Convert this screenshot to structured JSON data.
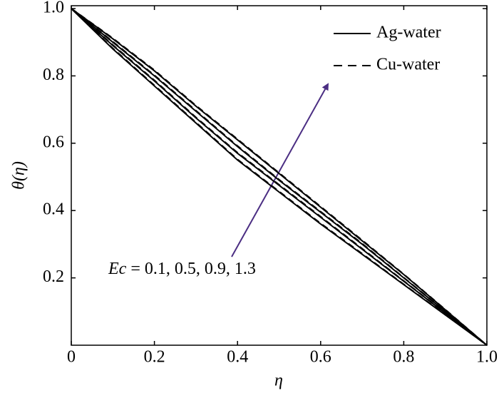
{
  "chart_data": {
    "type": "line",
    "x_label": "η",
    "y_label": "θ(η)",
    "x": [
      0,
      0.1,
      0.2,
      0.3,
      0.4,
      0.5,
      0.6,
      0.7,
      0.8,
      0.9,
      1
    ],
    "series": [
      {
        "name": "Ag-water",
        "color": "#000000",
        "dashed": false,
        "curves": [
          [
            1,
            0.88,
            0.77,
            0.66,
            0.55,
            0.455,
            0.36,
            0.27,
            0.18,
            0.09,
            0
          ],
          [
            1,
            0.89,
            0.785,
            0.675,
            0.57,
            0.475,
            0.38,
            0.285,
            0.19,
            0.095,
            0
          ],
          [
            1,
            0.9,
            0.8,
            0.695,
            0.59,
            0.49,
            0.395,
            0.3,
            0.2,
            0.1,
            0
          ],
          [
            1,
            0.91,
            0.815,
            0.71,
            0.61,
            0.51,
            0.41,
            0.31,
            0.21,
            0.105,
            0
          ]
        ]
      },
      {
        "name": "Cu-water",
        "color": "#000000",
        "dashed": true,
        "curves": [
          [
            1,
            0.882,
            0.772,
            0.662,
            0.552,
            0.457,
            0.362,
            0.272,
            0.181,
            0.091,
            0
          ],
          [
            1,
            0.892,
            0.787,
            0.677,
            0.572,
            0.477,
            0.382,
            0.287,
            0.191,
            0.096,
            0
          ],
          [
            1,
            0.902,
            0.802,
            0.697,
            0.592,
            0.492,
            0.397,
            0.302,
            0.201,
            0.101,
            0
          ],
          [
            1,
            0.912,
            0.817,
            0.712,
            0.612,
            0.512,
            0.412,
            0.312,
            0.211,
            0.106,
            0
          ]
        ]
      }
    ],
    "annotation": {
      "symbol": "Ec",
      "text": " = 0.1, 0.5, 0.9, 1.3"
    },
    "xlim": [
      0,
      1
    ],
    "ylim": [
      0,
      1
    ],
    "xticks": [
      0,
      0.2,
      0.4,
      0.6,
      0.8,
      {
        "value": 1,
        "label": "1.0"
      }
    ],
    "yticks": [
      0.2,
      0.4,
      0.6,
      0.8,
      {
        "value": 1,
        "label": "1.0"
      }
    ],
    "legend": "upper right",
    "grid": false
  }
}
